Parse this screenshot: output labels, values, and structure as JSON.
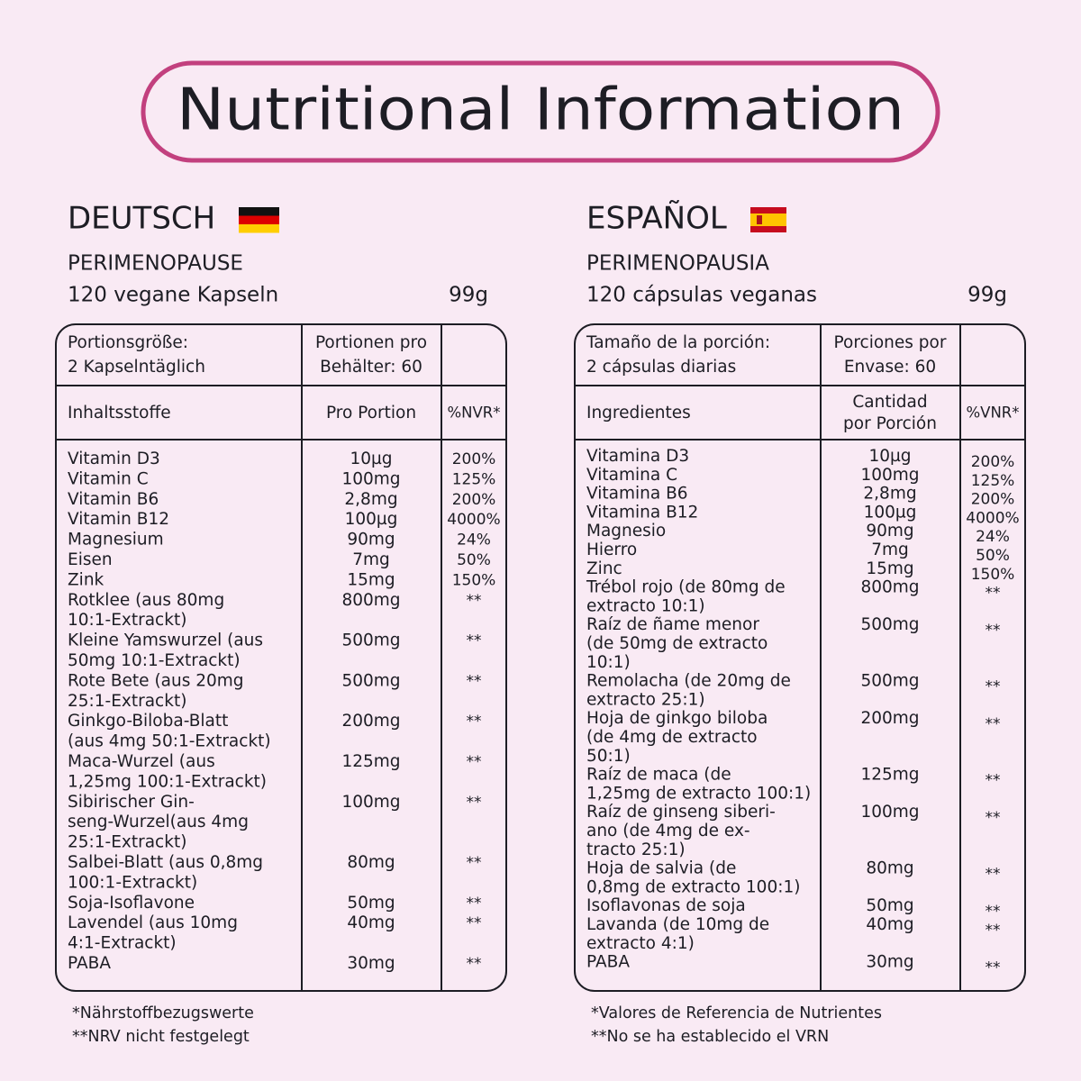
{
  "title": "Nutritional Information",
  "panels": [
    {
      "language": "DEUTSCH",
      "product": "PERIMENOPAUSE",
      "count": "120 vegane Kapseln",
      "weight": "99g",
      "serving_size": [
        "Portionsgröße:",
        "2 Kapselntäglich"
      ],
      "servings": [
        "Portionen pro",
        "Behälter: 60"
      ],
      "headers": {
        "ingredient": [
          "Inhaltsstoffe"
        ],
        "amount": [
          "Pro Portion"
        ],
        "reference": [
          "%NVR*"
        ]
      },
      "rows": [
        {
          "name": [
            "Vitamin D3"
          ],
          "amount": "10µg",
          "reference": "200%"
        },
        {
          "name": [
            "Vitamin C"
          ],
          "amount": "100mg",
          "reference": "125%"
        },
        {
          "name": [
            "Vitamin B6"
          ],
          "amount": "2,8mg",
          "reference": "200%"
        },
        {
          "name": [
            "Vitamin B12"
          ],
          "amount": "100µg",
          "reference": "4000%"
        },
        {
          "name": [
            "Magnesium"
          ],
          "amount": "90mg",
          "reference": "24%"
        },
        {
          "name": [
            "Eisen"
          ],
          "amount": "7mg",
          "reference": "50%"
        },
        {
          "name": [
            "Zink"
          ],
          "amount": "15mg",
          "reference": "150%"
        },
        {
          "name": [
            "Rotklee (aus 80mg",
            "10:1-Extrackt)"
          ],
          "amount": "800mg",
          "reference": "**"
        },
        {
          "name": [
            "Kleine Yamswurzel (aus",
            "50mg 10:1-Extrackt)"
          ],
          "amount": "500mg",
          "reference": "**"
        },
        {
          "name": [
            "Rote Bete (aus 20mg",
            "25:1-Extrackt)"
          ],
          "amount": "500mg",
          "reference": "**"
        },
        {
          "name": [
            "Ginkgo-Biloba-Blatt",
            "(aus 4mg 50:1-Extrackt)"
          ],
          "amount": "200mg",
          "reference": "**"
        },
        {
          "name": [
            "Maca-Wurzel (aus",
            "1,25mg 100:1-Extrackt)"
          ],
          "amount": "125mg",
          "reference": "**"
        },
        {
          "name": [
            "Sibirischer Gin-",
            "seng-Wurzel(aus 4mg",
            "25:1-Extrackt)"
          ],
          "amount": "100mg",
          "reference": "**"
        },
        {
          "name": [
            "Salbei-Blatt (aus 0,8mg",
            "100:1-Extrackt)"
          ],
          "amount": "80mg",
          "reference": "**"
        },
        {
          "name": [
            "Soja-Isoflavone"
          ],
          "amount": "50mg",
          "reference": "**"
        },
        {
          "name": [
            "Lavendel (aus 10mg",
            "4:1-Extrackt)"
          ],
          "amount": "40mg",
          "reference": "**"
        },
        {
          "name": [
            "PABA"
          ],
          "amount": "30mg",
          "reference": "**"
        }
      ],
      "footnotes": [
        "*Nährstoffbezugswerte",
        "**NRV nicht festgelegt"
      ]
    },
    {
      "language": "ESPAÑOL",
      "product": "PERIMENOPAUSIA",
      "count": "120 cápsulas veganas",
      "weight": "99g",
      "serving_size": [
        "Tamaño de la porción:",
        "2 cápsulas diarias"
      ],
      "servings": [
        "Porciones por",
        "Envase: 60"
      ],
      "headers": {
        "ingredient": [
          "Ingredientes"
        ],
        "amount": [
          "Cantidad",
          "por Porción"
        ],
        "reference": [
          "%VNR*"
        ]
      },
      "rows": [
        {
          "name": [
            "Vitamina D3"
          ],
          "amount": "10µg",
          "reference": "200%"
        },
        {
          "name": [
            "Vitamina C"
          ],
          "amount": "100mg",
          "reference": "125%"
        },
        {
          "name": [
            "Vitamina B6"
          ],
          "amount": "2,8mg",
          "reference": "200%"
        },
        {
          "name": [
            "Vitamina B12"
          ],
          "amount": "100µg",
          "reference": "4000%"
        },
        {
          "name": [
            "Magnesio"
          ],
          "amount": "90mg",
          "reference": "24%"
        },
        {
          "name": [
            "Hierro"
          ],
          "amount": "7mg",
          "reference": "50%"
        },
        {
          "name": [
            "Zinc"
          ],
          "amount": "15mg",
          "reference": "150%"
        },
        {
          "name": [
            "Trébol rojo (de 80mg de",
            "extracto 10:1)"
          ],
          "amount": "800mg",
          "reference": "**"
        },
        {
          "name": [
            "Raíz de ñame menor",
            "(de 50mg de extracto",
            "10:1)"
          ],
          "amount": "500mg",
          "reference": "**"
        },
        {
          "name": [
            "Remolacha (de 20mg de",
            "extracto 25:1)"
          ],
          "amount": "500mg",
          "reference": "**"
        },
        {
          "name": [
            "Hoja de ginkgo biloba",
            "(de 4mg de extracto",
            "50:1)"
          ],
          "amount": "200mg",
          "reference": "**"
        },
        {
          "name": [
            "Raíz de maca (de",
            "1,25mg de extracto 100:1)"
          ],
          "amount": "125mg",
          "reference": "**"
        },
        {
          "name": [
            "Raíz de ginseng siberi-",
            "ano (de 4mg de ex-",
            "tracto 25:1)"
          ],
          "amount": "100mg",
          "reference": "**"
        },
        {
          "name": [
            "Hoja de salvia (de",
            "0,8mg de extracto 100:1)"
          ],
          "amount": "80mg",
          "reference": "**"
        },
        {
          "name": [
            "Isoflavonas de soja"
          ],
          "amount": "50mg",
          "reference": "**"
        },
        {
          "name": [
            "Lavanda (de 10mg de",
            "extracto 4:1)"
          ],
          "amount": "40mg",
          "reference": "**"
        },
        {
          "name": [
            "PABA"
          ],
          "amount": "30mg",
          "reference": "**"
        }
      ],
      "footnotes": [
        "*Valores de Referencia de Nutrientes",
        "**No se ha establecido el VRN"
      ]
    }
  ]
}
